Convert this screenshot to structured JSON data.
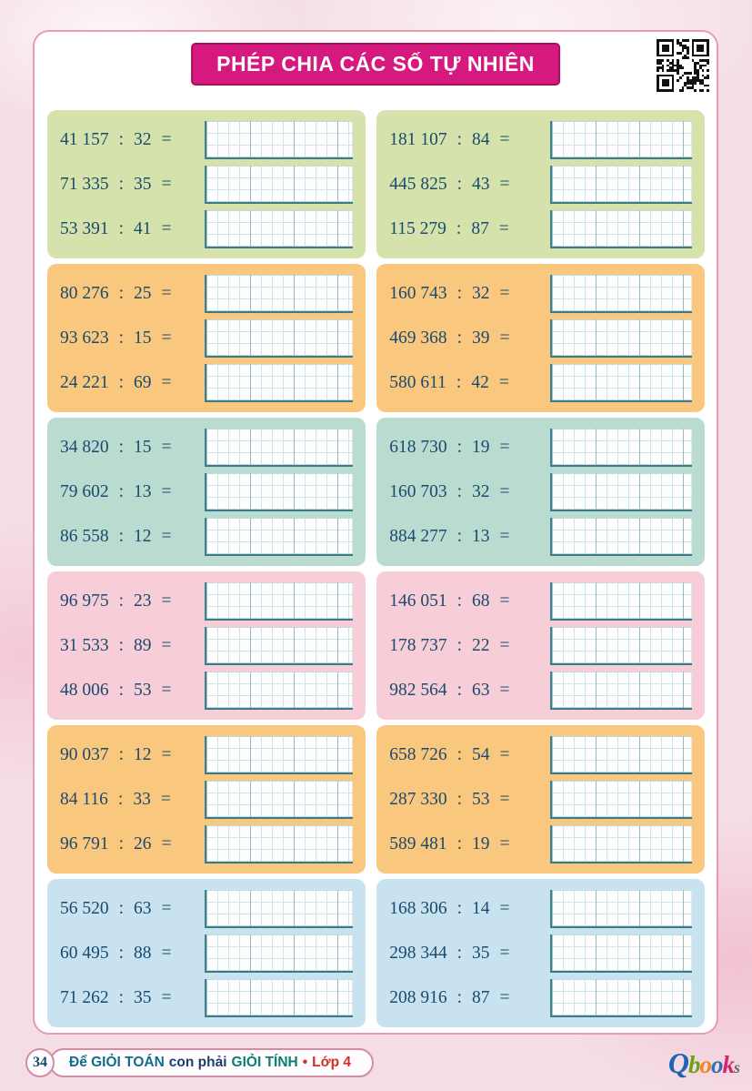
{
  "header": {
    "title": "PHÉP CHIA CÁC SỐ TỰ NHIÊN",
    "banner_bg": "#d6197e",
    "qr_icon": "qr-code"
  },
  "symbols": {
    "divide": ":",
    "equals": "="
  },
  "blocks": [
    {
      "color": "#d5e2ab",
      "problems": [
        {
          "dividend": "41 157",
          "divisor": "32"
        },
        {
          "dividend": "71 335",
          "divisor": "35"
        },
        {
          "dividend": "53 391",
          "divisor": "41"
        }
      ]
    },
    {
      "color": "#d5e2ab",
      "problems": [
        {
          "dividend": "181 107",
          "divisor": "84"
        },
        {
          "dividend": "445 825",
          "divisor": "43"
        },
        {
          "dividend": "115 279",
          "divisor": "87"
        }
      ]
    },
    {
      "color": "#f9c87e",
      "problems": [
        {
          "dividend": "80 276",
          "divisor": "25"
        },
        {
          "dividend": "93 623",
          "divisor": "15"
        },
        {
          "dividend": "24 221",
          "divisor": "69"
        }
      ]
    },
    {
      "color": "#f9c87e",
      "problems": [
        {
          "dividend": "160 743",
          "divisor": "32"
        },
        {
          "dividend": "469 368",
          "divisor": "39"
        },
        {
          "dividend": "580 611",
          "divisor": "42"
        }
      ]
    },
    {
      "color": "#badcd0",
      "problems": [
        {
          "dividend": "34 820",
          "divisor": "15"
        },
        {
          "dividend": "79 602",
          "divisor": "13"
        },
        {
          "dividend": "86 558",
          "divisor": "12"
        }
      ]
    },
    {
      "color": "#badcd0",
      "problems": [
        {
          "dividend": "618 730",
          "divisor": "19"
        },
        {
          "dividend": "160 703",
          "divisor": "32"
        },
        {
          "dividend": "884 277",
          "divisor": "13"
        }
      ]
    },
    {
      "color": "#f7cdd8",
      "problems": [
        {
          "dividend": "96 975",
          "divisor": "23"
        },
        {
          "dividend": "31 533",
          "divisor": "89"
        },
        {
          "dividend": "48 006",
          "divisor": "53"
        }
      ]
    },
    {
      "color": "#f7cdd8",
      "problems": [
        {
          "dividend": "146 051",
          "divisor": "68"
        },
        {
          "dividend": "178 737",
          "divisor": "22"
        },
        {
          "dividend": "982 564",
          "divisor": "63"
        }
      ]
    },
    {
      "color": "#f9c87e",
      "problems": [
        {
          "dividend": "90 037",
          "divisor": "12"
        },
        {
          "dividend": "84 116",
          "divisor": "33"
        },
        {
          "dividend": "96 791",
          "divisor": "26"
        }
      ]
    },
    {
      "color": "#f9c87e",
      "problems": [
        {
          "dividend": "658 726",
          "divisor": "54"
        },
        {
          "dividend": "287 330",
          "divisor": "53"
        },
        {
          "dividend": "589 481",
          "divisor": "19"
        }
      ]
    },
    {
      "color": "#c8e2f0",
      "problems": [
        {
          "dividend": "56 520",
          "divisor": "63"
        },
        {
          "dividend": "60 495",
          "divisor": "88"
        },
        {
          "dividend": "71 262",
          "divisor": "35"
        }
      ]
    },
    {
      "color": "#c8e2f0",
      "problems": [
        {
          "dividend": "168 306",
          "divisor": "14"
        },
        {
          "dividend": "298 344",
          "divisor": "35"
        },
        {
          "dividend": "208 916",
          "divisor": "87"
        }
      ]
    }
  ],
  "footer": {
    "page_number": "34",
    "tagline": [
      {
        "text": "Để GIỎI TOÁN",
        "color": "#0f6e8c"
      },
      {
        "text": "con phải",
        "color": "#1c3e6e"
      },
      {
        "text": "GIỎI TÍNH",
        "color": "#0e7d72"
      },
      {
        "text": "•",
        "color": "#d03028"
      },
      {
        "text": "Lớp 4",
        "color": "#d03028"
      }
    ],
    "logo_letters": [
      {
        "ch": "Q",
        "color": "#1e63b4"
      },
      {
        "ch": "b",
        "color": "#67a41c"
      },
      {
        "ch": "o",
        "color": "#f0871e"
      },
      {
        "ch": "o",
        "color": "#2a71b8"
      },
      {
        "ch": "k",
        "color": "#d6256e"
      },
      {
        "ch": "s",
        "color": "#6b6b6b"
      }
    ]
  }
}
